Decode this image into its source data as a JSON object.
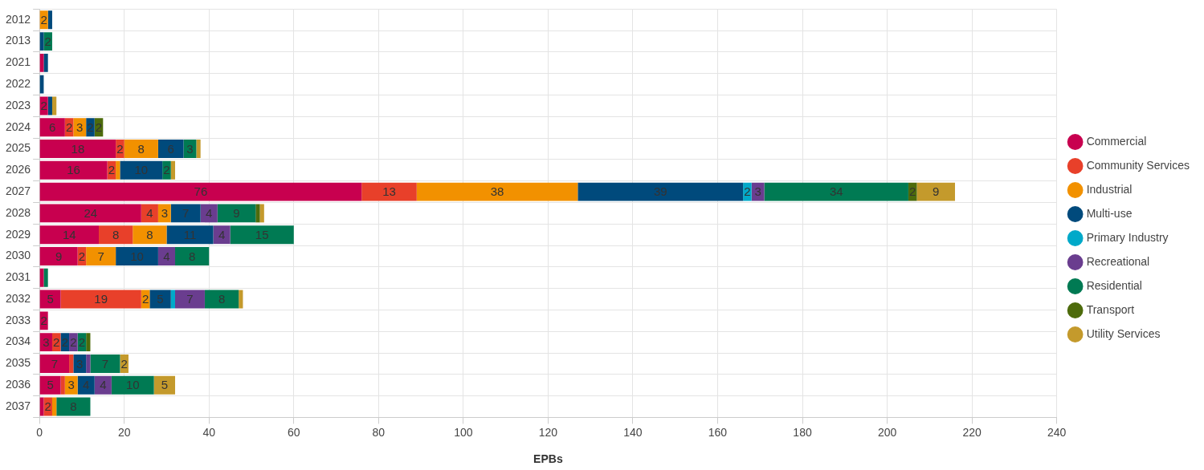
{
  "chart_data": {
    "type": "bar",
    "orientation": "horizontal",
    "stacked": true,
    "xlabel": "EPBs",
    "categories": [
      "2012",
      "2013",
      "2021",
      "2022",
      "2023",
      "2024",
      "2025",
      "2026",
      "2027",
      "2028",
      "2029",
      "2030",
      "2031",
      "2032",
      "2033",
      "2034",
      "2035",
      "2036",
      "2037"
    ],
    "xlim": [
      0,
      240
    ],
    "xticks": [
      0,
      20,
      40,
      60,
      80,
      100,
      120,
      140,
      160,
      180,
      200,
      220,
      240
    ],
    "grid": true,
    "legend": "right",
    "series": [
      {
        "name": "Commercial",
        "color": "#c8004f",
        "values": [
          null,
          null,
          1,
          null,
          2,
          6,
          18,
          16,
          76,
          24,
          14,
          9,
          1,
          5,
          2,
          3,
          7,
          5,
          1
        ],
        "value_labels": [
          null,
          null,
          null,
          null,
          "2",
          "6",
          "18",
          "16",
          "76",
          "24",
          "14",
          "9",
          null,
          "5",
          "2",
          "3",
          "7",
          "5",
          null
        ]
      },
      {
        "name": "Community Services",
        "color": "#e8402a",
        "values": [
          null,
          null,
          null,
          null,
          null,
          2,
          2,
          2,
          13,
          4,
          8,
          2,
          null,
          19,
          null,
          2,
          1,
          1,
          2
        ],
        "value_labels": [
          null,
          null,
          null,
          null,
          null,
          "2",
          "2",
          "2",
          "13",
          "4",
          "8",
          "2",
          null,
          "19",
          null,
          "2",
          null,
          null,
          "2"
        ]
      },
      {
        "name": "Industrial",
        "color": "#f29100",
        "values": [
          2,
          null,
          null,
          null,
          null,
          3,
          8,
          1,
          38,
          3,
          8,
          7,
          null,
          2,
          null,
          null,
          null,
          3,
          1
        ],
        "value_labels": [
          "2",
          null,
          null,
          null,
          null,
          "3",
          "8",
          null,
          "38",
          "3",
          "8",
          "7",
          null,
          "2",
          null,
          null,
          null,
          "3",
          null
        ]
      },
      {
        "name": "Multi-use",
        "color": "#004a7c",
        "values": [
          1,
          1,
          1,
          1,
          1,
          2,
          6,
          10,
          39,
          7,
          11,
          10,
          null,
          5,
          null,
          2,
          3,
          4,
          null
        ],
        "value_labels": [
          null,
          null,
          null,
          null,
          null,
          "2",
          "6",
          "10",
          "39",
          "7",
          "11",
          "10",
          null,
          "5",
          null,
          "2",
          "3",
          "4",
          null
        ]
      },
      {
        "name": "Primary Industry",
        "color": "#00a9c9",
        "values": [
          null,
          null,
          null,
          null,
          null,
          null,
          null,
          null,
          2,
          null,
          null,
          null,
          null,
          1,
          null,
          null,
          null,
          null,
          null
        ],
        "value_labels": [
          null,
          null,
          null,
          null,
          null,
          null,
          null,
          null,
          "2",
          null,
          null,
          null,
          null,
          null,
          null,
          null,
          null,
          null,
          null
        ]
      },
      {
        "name": "Recreational",
        "color": "#6a3d8f",
        "values": [
          null,
          null,
          null,
          null,
          null,
          null,
          null,
          null,
          3,
          4,
          4,
          4,
          null,
          7,
          null,
          2,
          1,
          4,
          null
        ],
        "value_labels": [
          null,
          null,
          null,
          null,
          null,
          null,
          null,
          null,
          "3",
          "4",
          "4",
          "4",
          null,
          "7",
          null,
          "2",
          null,
          "4",
          null
        ]
      },
      {
        "name": "Residential",
        "color": "#007a53",
        "values": [
          null,
          2,
          null,
          null,
          null,
          null,
          3,
          2,
          34,
          9,
          15,
          8,
          1,
          8,
          null,
          2,
          7,
          10,
          8
        ],
        "value_labels": [
          null,
          "2",
          null,
          null,
          null,
          null,
          "3",
          "2",
          "34",
          "9",
          "15",
          "8",
          null,
          "8",
          null,
          "2",
          "7",
          "10",
          "8"
        ]
      },
      {
        "name": "Transport",
        "color": "#4d6b0c",
        "values": [
          null,
          null,
          null,
          null,
          null,
          2,
          null,
          null,
          2,
          1,
          null,
          null,
          null,
          null,
          null,
          1,
          null,
          null,
          null
        ],
        "value_labels": [
          null,
          null,
          null,
          null,
          null,
          "2",
          null,
          null,
          "2",
          null,
          null,
          null,
          null,
          null,
          null,
          null,
          null,
          null,
          null
        ]
      },
      {
        "name": "Utility Services",
        "color": "#c49a2c",
        "values": [
          null,
          null,
          null,
          null,
          1,
          null,
          1,
          1,
          9,
          1,
          null,
          null,
          null,
          1,
          null,
          null,
          2,
          5,
          null
        ],
        "value_labels": [
          null,
          null,
          null,
          null,
          null,
          null,
          null,
          null,
          "9",
          null,
          null,
          null,
          null,
          null,
          null,
          null,
          "2",
          "5",
          null
        ]
      }
    ]
  }
}
